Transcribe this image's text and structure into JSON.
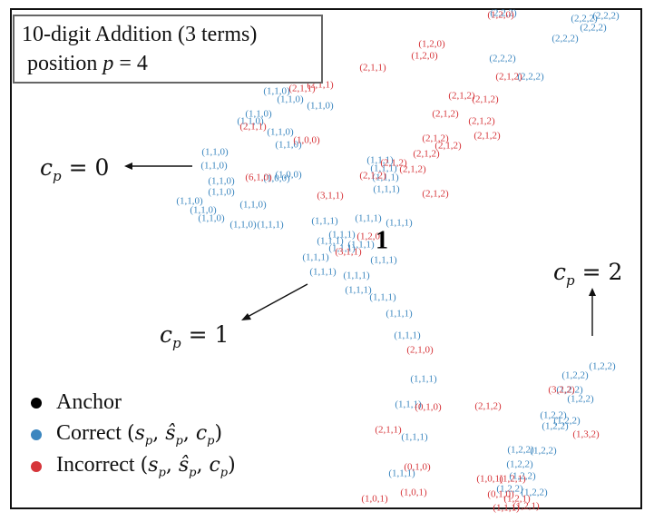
{
  "title": {
    "line1": "10-digit Addition (3 terms)",
    "line2_prefix": "position ",
    "line2_var": "p",
    "line2_suffix": " = 4"
  },
  "colors": {
    "correct": "#3b86bf",
    "incorrect": "#d6353a",
    "anchor": "#000000"
  },
  "chart_data": {
    "type": "scatter",
    "title": "10-digit Addition (3 terms) position p = 4",
    "annotations": [
      {
        "base": "c",
        "sub": "p",
        "rest": " = 0"
      },
      {
        "base": "c",
        "sub": "p",
        "rest": " = 1"
      },
      {
        "base": "c",
        "sub": "p",
        "rest": " = 2"
      }
    ],
    "anchor_label": "1",
    "legend": [
      {
        "label": "Anchor",
        "color": "#000000"
      },
      {
        "label": "Correct (s_p, ŝ_p, c_p)",
        "color": "#3b86bf"
      },
      {
        "label": "Incorrect (s_p, ŝ_p, c_p)",
        "color": "#d6353a"
      }
    ],
    "series": [
      {
        "name": "Correct",
        "points": [
          {
            "x": 555,
            "y": 15,
            "label": "(2,2,2)"
          },
          {
            "x": 644,
            "y": 21,
            "label": "(2,2,2)"
          },
          {
            "x": 668,
            "y": 18,
            "label": "(2,2,2)"
          },
          {
            "x": 654,
            "y": 31,
            "label": "(2,2,2)"
          },
          {
            "x": 623,
            "y": 43,
            "label": "(2,2,2)"
          },
          {
            "x": 554,
            "y": 65,
            "label": "(2,2,2)"
          },
          {
            "x": 585,
            "y": 85,
            "label": "(2,2,2)"
          },
          {
            "x": 305,
            "y": 101,
            "label": "(1,1,0)"
          },
          {
            "x": 320,
            "y": 110,
            "label": "(1,1,0)"
          },
          {
            "x": 285,
            "y": 126,
            "label": "(1,1,0)"
          },
          {
            "x": 276,
            "y": 134,
            "label": "(1,1,0)"
          },
          {
            "x": 353,
            "y": 117,
            "label": "(1,1,0)"
          },
          {
            "x": 309,
            "y": 146,
            "label": "(1,1,0)"
          },
          {
            "x": 318,
            "y": 160,
            "label": "(1,1,0)"
          },
          {
            "x": 237,
            "y": 168,
            "label": "(1,1,0)"
          },
          {
            "x": 236,
            "y": 183,
            "label": "(1,1,0)"
          },
          {
            "x": 244,
            "y": 200,
            "label": "(1,1,0)"
          },
          {
            "x": 244,
            "y": 212,
            "label": "(1,1,0)"
          },
          {
            "x": 209,
            "y": 222,
            "label": "(1,1,0)"
          },
          {
            "x": 279,
            "y": 226,
            "label": "(1,1,0)"
          },
          {
            "x": 224,
            "y": 232,
            "label": "(1,1,0)"
          },
          {
            "x": 233,
            "y": 241,
            "label": "(1,1,0)"
          },
          {
            "x": 305,
            "y": 197,
            "label": "(1,0,0)"
          },
          {
            "x": 318,
            "y": 193,
            "label": "(1,0,0)"
          },
          {
            "x": 268,
            "y": 248,
            "label": "(1,1,0)"
          },
          {
            "x": 298,
            "y": 248,
            "label": "(1,1,1)"
          },
          {
            "x": 358,
            "y": 244,
            "label": "(1,1,1)"
          },
          {
            "x": 406,
            "y": 241,
            "label": "(1,1,1)"
          },
          {
            "x": 440,
            "y": 246,
            "label": "(1,1,1)"
          },
          {
            "x": 377,
            "y": 259,
            "label": "(1,1,1)"
          },
          {
            "x": 364,
            "y": 266,
            "label": "(1,1,1)"
          },
          {
            "x": 377,
            "y": 274,
            "label": "(1,1,1)"
          },
          {
            "x": 398,
            "y": 270,
            "label": "(1,1,1)"
          },
          {
            "x": 348,
            "y": 284,
            "label": "(1,1,1)"
          },
          {
            "x": 423,
            "y": 287,
            "label": "(1,1,1)"
          },
          {
            "x": 356,
            "y": 300,
            "label": "(1,1,1)"
          },
          {
            "x": 393,
            "y": 304,
            "label": "(1,1,1)"
          },
          {
            "x": 395,
            "y": 320,
            "label": "(1,1,1)"
          },
          {
            "x": 422,
            "y": 328,
            "label": "(1,1,1)"
          },
          {
            "x": 440,
            "y": 346,
            "label": "(1,1,1)"
          },
          {
            "x": 449,
            "y": 370,
            "label": "(1,1,1)"
          },
          {
            "x": 467,
            "y": 418,
            "label": "(1,1,1)"
          },
          {
            "x": 450,
            "y": 446,
            "label": "(1,1,1)"
          },
          {
            "x": 457,
            "y": 482,
            "label": "(1,1,1)"
          },
          {
            "x": 443,
            "y": 522,
            "label": "(1,1,1)"
          },
          {
            "x": 419,
            "y": 177,
            "label": "(1,1,1)"
          },
          {
            "x": 423,
            "y": 186,
            "label": "(1,1,1)"
          },
          {
            "x": 425,
            "y": 196,
            "label": "(1,1,1)"
          },
          {
            "x": 426,
            "y": 209,
            "label": "(1,1,1)"
          },
          {
            "x": 634,
            "y": 414,
            "label": "(1,2,2)"
          },
          {
            "x": 664,
            "y": 404,
            "label": "(1,2,2)"
          },
          {
            "x": 628,
            "y": 430,
            "label": "(1,2,2)"
          },
          {
            "x": 640,
            "y": 440,
            "label": "(1,2,2)"
          },
          {
            "x": 610,
            "y": 458,
            "label": "(1,2,2)"
          },
          {
            "x": 625,
            "y": 464,
            "label": "(1,2,2)"
          },
          {
            "x": 612,
            "y": 470,
            "label": "(1,2,2)"
          },
          {
            "x": 574,
            "y": 496,
            "label": "(1,2,2)"
          },
          {
            "x": 599,
            "y": 497,
            "label": "(1,2,2)"
          },
          {
            "x": 573,
            "y": 512,
            "label": "(1,2,2)"
          },
          {
            "x": 576,
            "y": 525,
            "label": "(1,2,2)"
          },
          {
            "x": 562,
            "y": 539,
            "label": "(1,2,2)"
          },
          {
            "x": 589,
            "y": 543,
            "label": "(1,2,2)"
          }
        ]
      },
      {
        "name": "Incorrect",
        "points": [
          {
            "x": 552,
            "y": 17,
            "label": "(1,2,0)"
          },
          {
            "x": 476,
            "y": 49,
            "label": "(1,2,0)"
          },
          {
            "x": 468,
            "y": 62,
            "label": "(1,2,0)"
          },
          {
            "x": 353,
            "y": 94,
            "label": "(2,1,1)"
          },
          {
            "x": 333,
            "y": 98,
            "label": "(2,1,1)"
          },
          {
            "x": 411,
            "y": 75,
            "label": "(2,1,1)"
          },
          {
            "x": 561,
            "y": 85,
            "label": "(2,1,2)"
          },
          {
            "x": 509,
            "y": 106,
            "label": "(2,1,2)"
          },
          {
            "x": 535,
            "y": 110,
            "label": "(2,1,2)"
          },
          {
            "x": 491,
            "y": 126,
            "label": "(2,1,2)"
          },
          {
            "x": 531,
            "y": 134,
            "label": "(2,1,2)"
          },
          {
            "x": 537,
            "y": 150,
            "label": "(2,1,2)"
          },
          {
            "x": 480,
            "y": 153,
            "label": "(2,1,2)"
          },
          {
            "x": 494,
            "y": 161,
            "label": "(2,1,2)"
          },
          {
            "x": 470,
            "y": 170,
            "label": "(2,1,2)"
          },
          {
            "x": 434,
            "y": 180,
            "label": "(2,1,2)"
          },
          {
            "x": 455,
            "y": 187,
            "label": "(2,1,2)"
          },
          {
            "x": 411,
            "y": 194,
            "label": "(2,1,2)"
          },
          {
            "x": 480,
            "y": 214,
            "label": "(2,1,2)"
          },
          {
            "x": 338,
            "y": 155,
            "label": "(1,0,0)"
          },
          {
            "x": 279,
            "y": 140,
            "label": "(2,1,1)"
          },
          {
            "x": 285,
            "y": 196,
            "label": "(6,1,0)"
          },
          {
            "x": 364,
            "y": 216,
            "label": "(3,1,1)"
          },
          {
            "x": 384,
            "y": 278,
            "label": "(3,1,1)"
          },
          {
            "x": 408,
            "y": 261,
            "label": "(1,2,0)"
          },
          {
            "x": 463,
            "y": 386,
            "label": "(2,1,0)"
          },
          {
            "x": 472,
            "y": 449,
            "label": "(0,1,0)"
          },
          {
            "x": 538,
            "y": 448,
            "label": "(2,1,2)"
          },
          {
            "x": 428,
            "y": 474,
            "label": "(2,1,1)"
          },
          {
            "x": 460,
            "y": 515,
            "label": "(0,1,0)"
          },
          {
            "x": 619,
            "y": 430,
            "label": "(3,2,2)"
          },
          {
            "x": 646,
            "y": 479,
            "label": "(1,3,2)"
          },
          {
            "x": 540,
            "y": 528,
            "label": "(1,0,1)"
          },
          {
            "x": 565,
            "y": 528,
            "label": "(1,2,1)"
          },
          {
            "x": 456,
            "y": 543,
            "label": "(1,0,1)"
          },
          {
            "x": 413,
            "y": 550,
            "label": "(1,0,1)"
          },
          {
            "x": 552,
            "y": 545,
            "label": "(0,1,0)"
          },
          {
            "x": 570,
            "y": 550,
            "label": "(1,2,1)"
          },
          {
            "x": 580,
            "y": 558,
            "label": "(1,2,1)"
          },
          {
            "x": 558,
            "y": 560,
            "label": "(1,1,1)"
          }
        ]
      },
      {
        "name": "Anchor",
        "points": [
          {
            "x": 421,
            "y": 267,
            "label": "1"
          }
        ]
      }
    ]
  }
}
